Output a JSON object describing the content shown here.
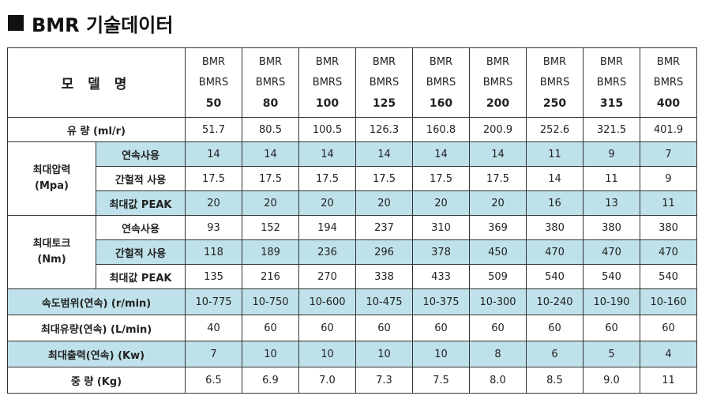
{
  "title": "BMR 기술데이터",
  "header": {
    "model_label": "모 델 명",
    "line1": "BMR",
    "line2": "BMRS",
    "models": [
      "50",
      "80",
      "100",
      "125",
      "160",
      "200",
      "250",
      "315",
      "400"
    ]
  },
  "rows": {
    "flow": {
      "label": "유    량 (ml/r)",
      "values": [
        "51.7",
        "80.5",
        "100.5",
        "126.3",
        "160.8",
        "200.9",
        "252.6",
        "321.5",
        "401.9"
      ]
    },
    "pressure": {
      "group": "최대압력",
      "unit": "(Mpa)",
      "continuous": {
        "label": "연속사용",
        "values": [
          "14",
          "14",
          "14",
          "14",
          "14",
          "14",
          "11",
          "9",
          "7"
        ]
      },
      "intermittent": {
        "label": "간헐적 사용",
        "values": [
          "17.5",
          "17.5",
          "17.5",
          "17.5",
          "17.5",
          "17.5",
          "14",
          "11",
          "9"
        ]
      },
      "peak": {
        "label": "최대값 PEAK",
        "values": [
          "20",
          "20",
          "20",
          "20",
          "20",
          "20",
          "16",
          "13",
          "11"
        ]
      }
    },
    "torque": {
      "group": "최대토크",
      "unit": "(Nm)",
      "continuous": {
        "label": "연속사용",
        "values": [
          "93",
          "152",
          "194",
          "237",
          "310",
          "369",
          "380",
          "380",
          "380"
        ]
      },
      "intermittent": {
        "label": "간헐적 사용",
        "values": [
          "118",
          "189",
          "236",
          "296",
          "378",
          "450",
          "470",
          "470",
          "470"
        ]
      },
      "peak": {
        "label": "최대값 PEAK",
        "values": [
          "135",
          "216",
          "270",
          "338",
          "433",
          "509",
          "540",
          "540",
          "540"
        ]
      }
    },
    "speed": {
      "label": "속도범위(연속) (r/min)",
      "values": [
        "10-775",
        "10-750",
        "10-600",
        "10-475",
        "10-375",
        "10-300",
        "10-240",
        "10-190",
        "10-160"
      ]
    },
    "max_flow": {
      "label": "최대유량(연속) (L/min)",
      "values": [
        "40",
        "60",
        "60",
        "60",
        "60",
        "60",
        "60",
        "60",
        "60"
      ]
    },
    "max_output": {
      "label": "최대출력(연속) (Kw)",
      "values": [
        "7",
        "10",
        "10",
        "10",
        "10",
        "8",
        "6",
        "5",
        "4"
      ]
    },
    "weight": {
      "label": "중    량 (Kg)",
      "values": [
        "6.5",
        "6.9",
        "7.0",
        "7.3",
        "7.5",
        "8.0",
        "8.5",
        "9.0",
        "11"
      ]
    }
  },
  "colors": {
    "highlight": "#bfe1ea",
    "border": "#333333",
    "text": "#222222"
  }
}
